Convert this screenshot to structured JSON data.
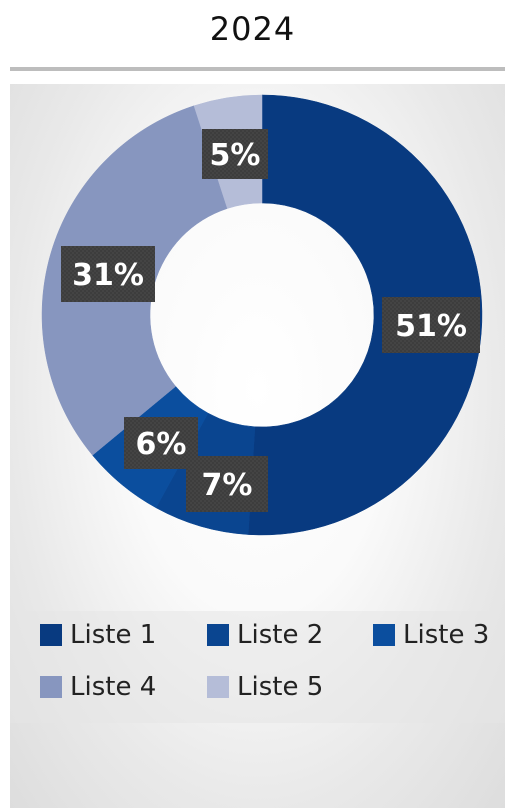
{
  "chart_data": {
    "type": "pie",
    "donut": true,
    "title": "2024",
    "categories": [
      "Liste 1",
      "Liste 2",
      "Liste 3",
      "Liste 4",
      "Liste 5"
    ],
    "values": [
      51,
      7,
      6,
      31,
      5
    ],
    "labels": [
      "51%",
      "7%",
      "6%",
      "31%",
      "5%"
    ],
    "colors": [
      "#083a80",
      "#0a4590",
      "#0b4e9e",
      "#8796bf",
      "#b5bdd8"
    ],
    "legend_position": "bottom"
  }
}
